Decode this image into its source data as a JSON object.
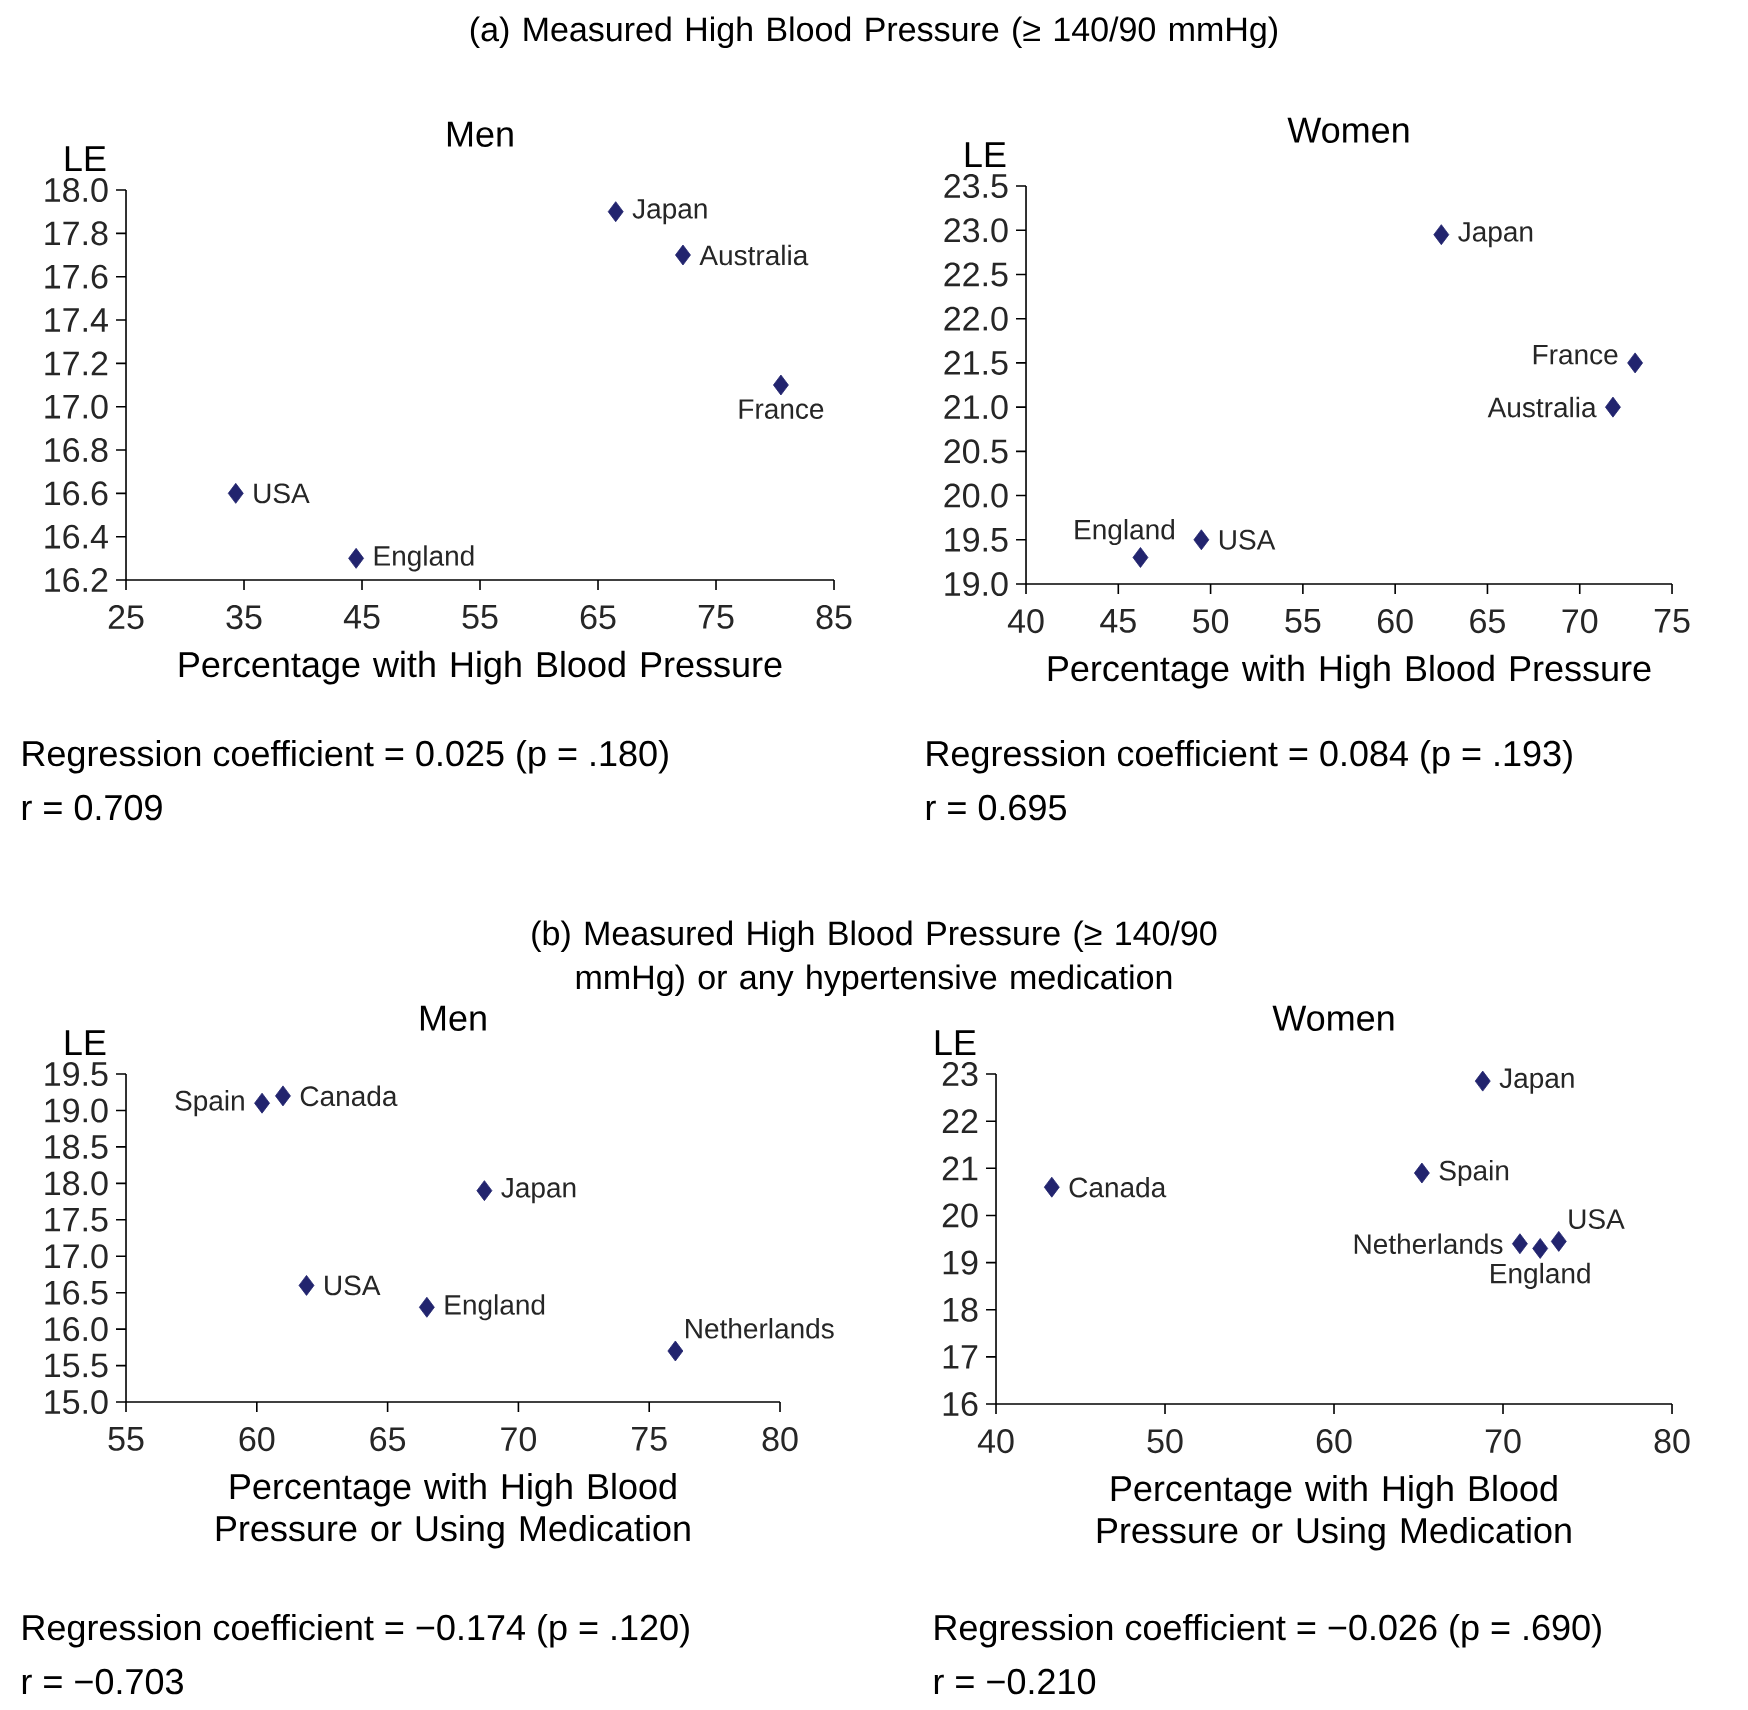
{
  "chart_data": [
    {
      "type": "scatter",
      "subtitle": "(a) Measured High Blood Pressure (≥ 140/90 mmHg)",
      "title": "Men",
      "xlabel": "Percentage with High Blood Pressure",
      "ylabel": "LE",
      "color": "#22246e",
      "marker": "diamond",
      "x": [
        34.3,
        44.5,
        66.5,
        72.2,
        80.5
      ],
      "values": [
        16.6,
        16.3,
        17.9,
        17.7,
        17.1
      ],
      "xlim": [
        25,
        85
      ],
      "xticks": [
        25,
        35,
        45,
        55,
        65,
        75,
        85
      ],
      "ylim": [
        16.2,
        18.0
      ],
      "yticks": [
        16.2,
        16.4,
        16.6,
        16.8,
        {
          "value": 17,
          "label": "17.0"
        },
        17.2,
        17.4,
        17.6,
        17.8,
        {
          "value": 18,
          "label": "18.0"
        }
      ],
      "annotations": [
        "Regression coefficient = 0.025 (p = .180)",
        "r = 0.709",
        {
          "text": "USA",
          "x": 34.3,
          "y": 16.6
        },
        {
          "text": "England",
          "x": 44.5,
          "y": 16.3
        },
        {
          "text": "Japan",
          "x": 66.5,
          "y": 17.9
        },
        {
          "text": "Australia",
          "x": 72.2,
          "y": 17.7
        },
        {
          "text": "France",
          "x": 80.5,
          "y": 17.1
        }
      ]
    },
    {
      "type": "scatter",
      "title": "Women",
      "xlabel": "Percentage with High Blood Pressure",
      "ylabel": "LE",
      "color": "#22246e",
      "marker": "diamond",
      "x": [
        46.2,
        49.5,
        62.5,
        71.8,
        73.0
      ],
      "values": [
        19.3,
        19.5,
        22.95,
        21.0,
        21.5
      ],
      "xlim": [
        40,
        75
      ],
      "xticks": [
        40,
        45,
        50,
        55,
        60,
        65,
        70,
        75
      ],
      "ylim": [
        19.0,
        23.5
      ],
      "yticks": [
        {
          "value": 19,
          "label": "19.0"
        },
        19.5,
        {
          "value": 20,
          "label": "20.0"
        },
        20.5,
        {
          "value": 21,
          "label": "21.0"
        },
        21.5,
        {
          "value": 22,
          "label": "22.0"
        },
        22.5,
        {
          "value": 23,
          "label": "23.0"
        },
        23.5
      ],
      "annotations": [
        "Regression coefficient = 0.084 (p = .193)",
        "r = 0.695",
        {
          "text": "England",
          "x": 46.2,
          "y": 19.3
        },
        {
          "text": "USA",
          "x": 49.5,
          "y": 19.5
        },
        {
          "text": "Japan",
          "x": 62.5,
          "y": 22.95
        },
        {
          "text": "Australia",
          "x": 71.8,
          "y": 21.0
        },
        {
          "text": "France",
          "x": 73.0,
          "y": 21.5
        }
      ]
    },
    {
      "type": "scatter",
      "subtitle": "(b) Measured High Blood Pressure (≥ 140/90 mmHg) or any hypertensive medication",
      "title": "Men",
      "xlabel": "Percentage with High Blood Pressure or Using Medication",
      "ylabel": "LE",
      "color": "#22246e",
      "marker": "diamond",
      "x": [
        60.2,
        61.0,
        61.9,
        68.7,
        66.5,
        76.0
      ],
      "values": [
        19.1,
        19.2,
        16.6,
        17.9,
        16.3,
        15.7
      ],
      "xlim": [
        55,
        80
      ],
      "xticks": [
        55,
        60,
        65,
        70,
        75,
        80
      ],
      "ylim": [
        15.0,
        19.5
      ],
      "yticks": [
        {
          "value": 15,
          "label": "15.0"
        },
        15.5,
        {
          "value": 16,
          "label": "16.0"
        },
        16.5,
        {
          "value": 17,
          "label": "17.0"
        },
        17.5,
        {
          "value": 18,
          "label": "18.0"
        },
        18.5,
        {
          "value": 19,
          "label": "19.0"
        },
        19.5
      ],
      "annotations": [
        "Regression coefficient = −0.174 (p = .120)",
        "r = −0.703",
        {
          "text": "Spain",
          "x": 60.2,
          "y": 19.1
        },
        {
          "text": "Canada",
          "x": 61.0,
          "y": 19.2
        },
        {
          "text": "USA",
          "x": 61.9,
          "y": 16.6
        },
        {
          "text": "Japan",
          "x": 68.7,
          "y": 17.9
        },
        {
          "text": "England",
          "x": 66.5,
          "y": 16.3
        },
        {
          "text": "Netherlands",
          "x": 76.0,
          "y": 15.7
        }
      ]
    },
    {
      "type": "scatter",
      "title": "Women",
      "xlabel": "Percentage with High Blood Pressure or Using Medication",
      "ylabel": "LE",
      "color": "#22246e",
      "marker": "diamond",
      "x": [
        43.3,
        65.2,
        68.8,
        71.0,
        72.2,
        73.3
      ],
      "values": [
        20.6,
        20.9,
        22.85,
        19.4,
        19.3,
        19.45
      ],
      "xlim": [
        40,
        80
      ],
      "xticks": [
        40,
        50,
        60,
        70,
        80
      ],
      "ylim": [
        16,
        23
      ],
      "yticks": [
        16,
        17,
        18,
        19,
        20,
        21,
        22,
        23
      ],
      "annotations": [
        "Regression coefficient = −0.026 (p = .690)",
        "r = −0.210",
        {
          "text": "Canada",
          "x": 43.3,
          "y": 20.6
        },
        {
          "text": "Spain",
          "x": 65.2,
          "y": 20.9
        },
        {
          "text": "Japan",
          "x": 68.8,
          "y": 22.85
        },
        {
          "text": "Netherlands",
          "x": 71.0,
          "y": 19.4
        },
        {
          "text": "England",
          "x": 72.2,
          "y": 19.3
        },
        {
          "text": "USA",
          "x": 73.3,
          "y": 19.45
        }
      ]
    }
  ]
}
